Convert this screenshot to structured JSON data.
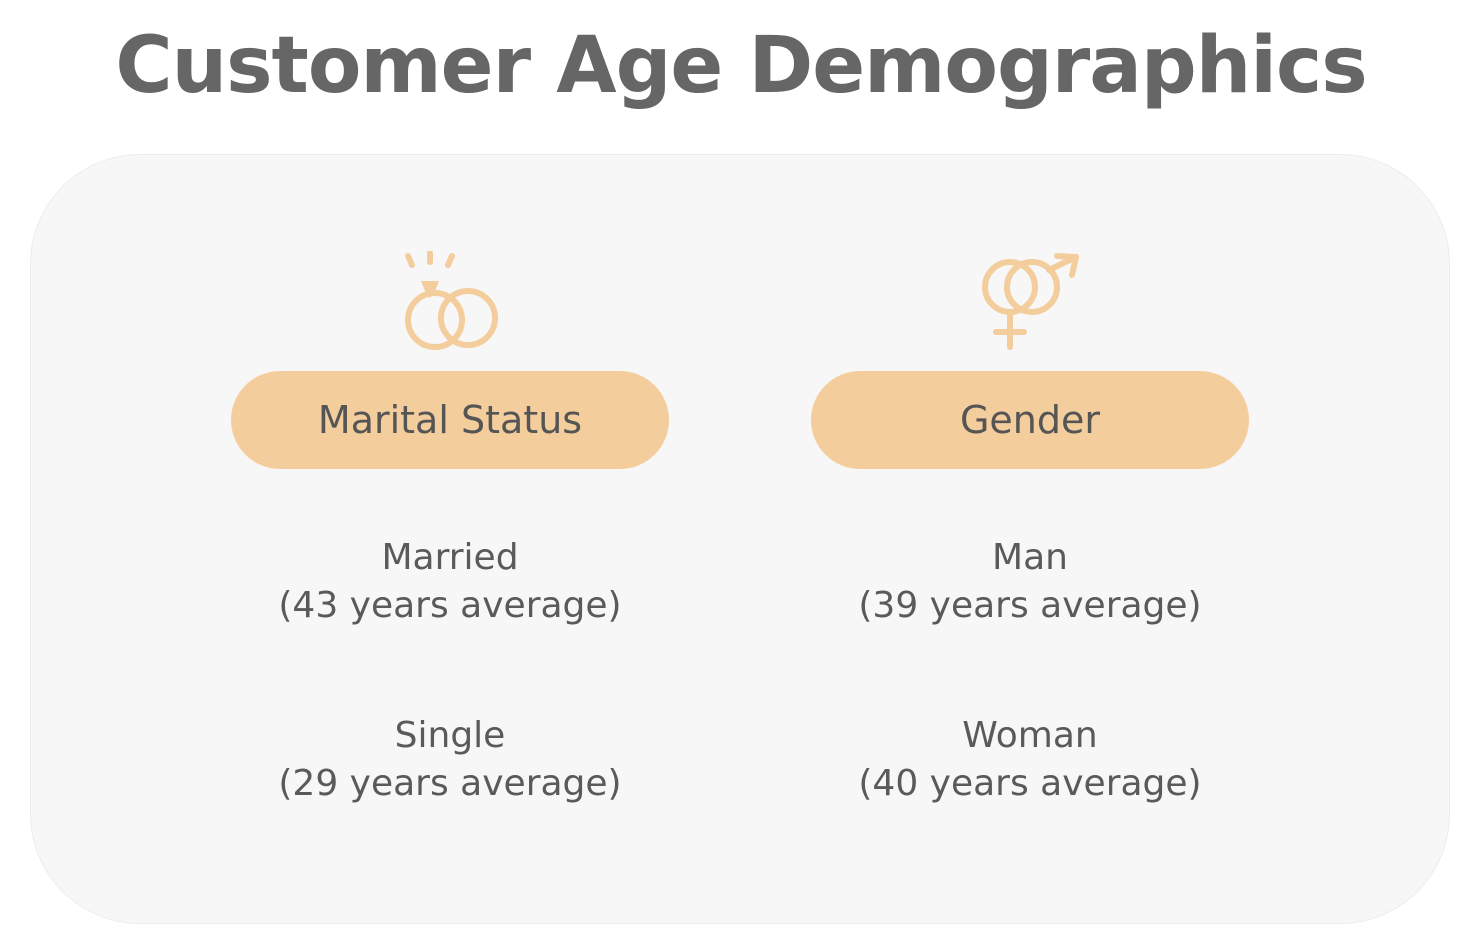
{
  "title": "Customer Age Demographics",
  "accent_color": "#f4cd9d",
  "icon_color": "#f4cd9d",
  "columns": [
    {
      "icon": "wedding-rings-icon",
      "header": "Marital Status",
      "entries": [
        {
          "label": "Married",
          "detail": "(43 years average)"
        },
        {
          "label": "Single",
          "detail": "(29 years average)"
        }
      ]
    },
    {
      "icon": "gender-symbols-icon",
      "header": "Gender",
      "entries": [
        {
          "label": "Man",
          "detail": "(39 years average)"
        },
        {
          "label": "Woman",
          "detail": "(40 years average)"
        }
      ]
    }
  ]
}
